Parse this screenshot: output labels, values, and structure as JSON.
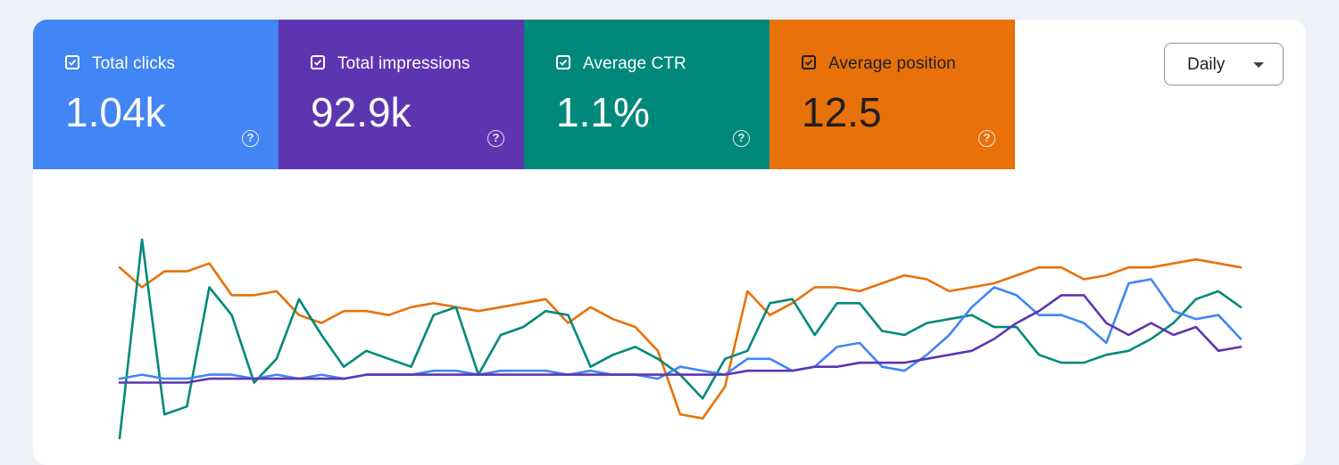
{
  "metrics": [
    {
      "label": "Total clicks",
      "value": "1.04k",
      "color": "#4285f4",
      "checked": true
    },
    {
      "label": "Total impressions",
      "value": "92.9k",
      "color": "#5e35b1",
      "checked": true
    },
    {
      "label": "Average CTR",
      "value": "1.1%",
      "color": "#00897b",
      "checked": true
    },
    {
      "label": "Average position",
      "value": "12.5",
      "color": "#e8710a",
      "checked": true
    }
  ],
  "granularity": {
    "selected": "Daily"
  },
  "chart_data": {
    "type": "line",
    "x_count": 51,
    "grid": false,
    "legend": "none",
    "series": [
      {
        "color": "#e8710a",
        "values": [
          31,
          26,
          30,
          30,
          32,
          24,
          24,
          25,
          19,
          17,
          20,
          20,
          19,
          21,
          22,
          21,
          20,
          21,
          22,
          23,
          17,
          21,
          18,
          16,
          10,
          -6,
          -7,
          1,
          25,
          19,
          22,
          26,
          26,
          25,
          27,
          29,
          28,
          25,
          26,
          27,
          29,
          31,
          31,
          28,
          29,
          31,
          31,
          32,
          33,
          32,
          31
        ]
      },
      {
        "color": "#00897b",
        "values": [
          -12,
          38,
          -6,
          -4,
          26,
          19,
          2,
          8,
          23,
          14,
          6,
          10,
          8,
          6,
          19,
          21,
          4,
          14,
          16,
          20,
          19,
          6,
          9,
          11,
          8,
          4,
          -2,
          8,
          10,
          22,
          23,
          14,
          22,
          22,
          15,
          14,
          17,
          18,
          19,
          16,
          16,
          9,
          7,
          7,
          9,
          10,
          13,
          17,
          23,
          25,
          21
        ]
      },
      {
        "color": "#4285f4",
        "values": [
          3,
          4,
          3,
          3,
          4,
          4,
          3,
          4,
          3,
          4,
          3,
          4,
          4,
          4,
          5,
          5,
          4,
          5,
          5,
          5,
          4,
          5,
          4,
          4,
          3,
          6,
          5,
          4,
          8,
          8,
          5,
          6,
          11,
          12,
          6,
          5,
          9,
          14,
          21,
          26,
          24,
          19,
          19,
          17,
          12,
          27,
          28,
          20,
          18,
          19,
          13
        ]
      },
      {
        "color": "#5e35b1",
        "values": [
          2,
          2,
          2,
          2,
          3,
          3,
          3,
          3,
          3,
          3,
          3,
          4,
          4,
          4,
          4,
          4,
          4,
          4,
          4,
          4,
          4,
          4,
          4,
          4,
          4,
          4,
          4,
          4,
          5,
          5,
          5,
          6,
          6,
          7,
          7,
          7,
          8,
          9,
          10,
          13,
          17,
          20,
          24,
          24,
          17,
          14,
          17,
          14,
          16,
          10,
          11
        ]
      }
    ]
  }
}
